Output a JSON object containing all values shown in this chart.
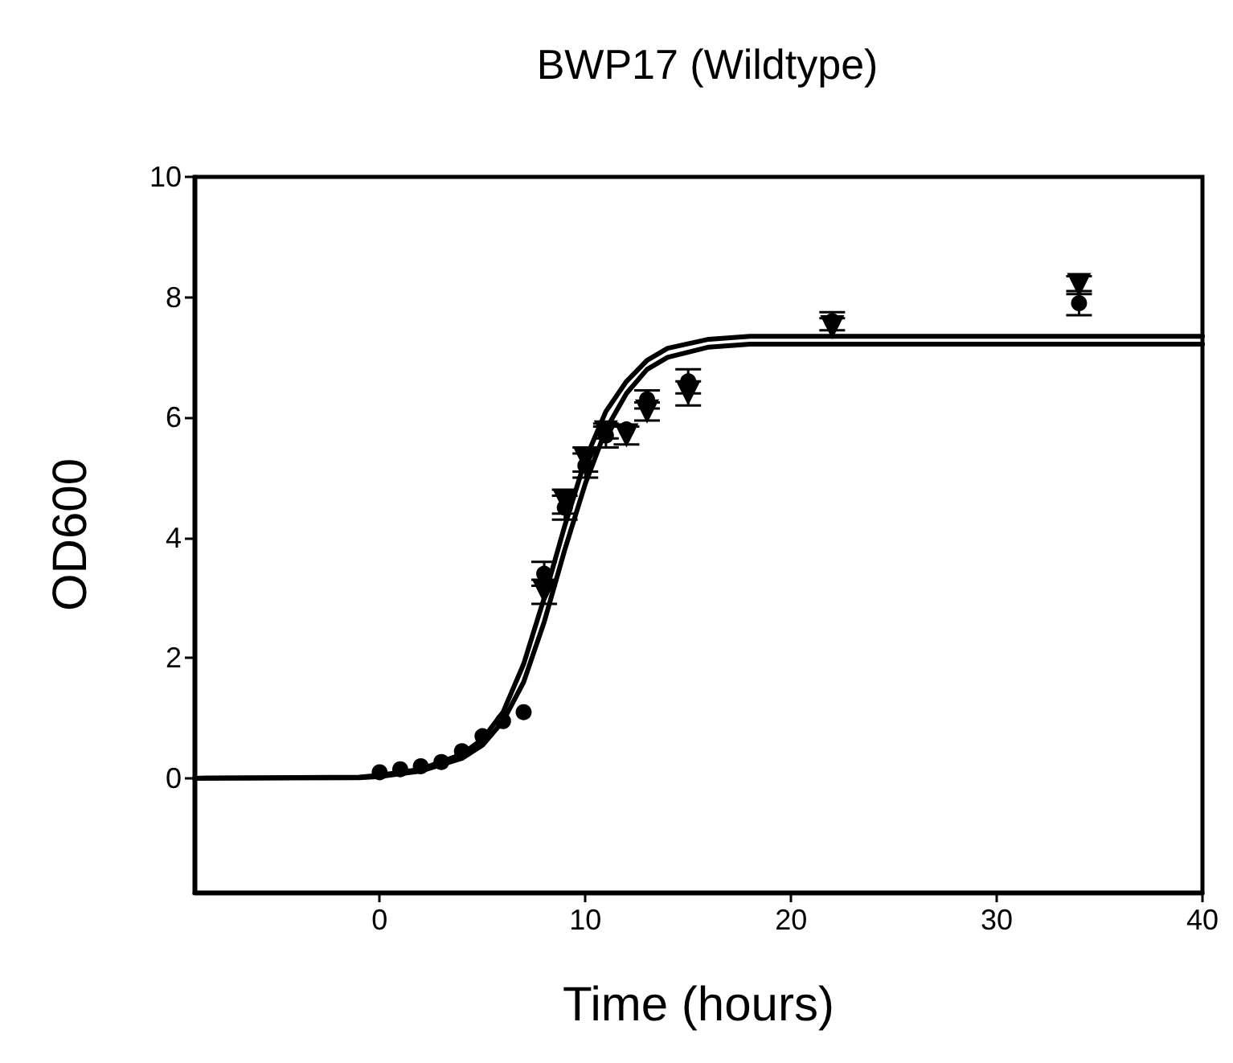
{
  "chart_data": {
    "type": "scatter",
    "title": "BWP17 (Wildtype)",
    "xlabel": "Time (hours)",
    "ylabel": "OD600",
    "xlim": [
      -9,
      40
    ],
    "xticks": [
      0,
      10,
      20,
      30,
      40
    ],
    "ylim": [
      -1.9,
      10
    ],
    "yticks": [
      0,
      2,
      4,
      6,
      8,
      10
    ],
    "grid": false,
    "series": [
      {
        "marker": "circle",
        "color": "#000000",
        "x": [
          0,
          1,
          2,
          3,
          4,
          5,
          6,
          7,
          8,
          9,
          10,
          11,
          12,
          13,
          15,
          22,
          34
        ],
        "values": [
          0.1,
          0.15,
          0.2,
          0.27,
          0.45,
          0.7,
          0.95,
          1.1,
          3.4,
          4.5,
          5.2,
          5.7,
          5.8,
          6.3,
          6.6,
          7.6,
          7.9
        ],
        "errors": [
          null,
          null,
          null,
          null,
          null,
          null,
          null,
          null,
          0.2,
          0.2,
          0.2,
          0.2,
          null,
          0.15,
          0.2,
          0.15,
          0.2
        ]
      },
      {
        "marker": "triangle",
        "color": "#000000",
        "x": [
          8,
          9,
          10,
          11,
          12,
          13,
          15,
          22,
          34
        ],
        "values": [
          3.1,
          4.6,
          5.3,
          5.75,
          5.7,
          6.1,
          6.4,
          7.5,
          8.2
        ],
        "errors": [
          0.2,
          0.2,
          0.2,
          0.1,
          0.15,
          0.15,
          0.2,
          0.15,
          0.15
        ]
      },
      {
        "type": "line",
        "marker": "none",
        "line_style": "solid",
        "color": "#000000",
        "x": [
          -9,
          -1,
          0,
          2,
          4,
          5,
          6,
          7,
          8,
          9,
          10,
          11,
          12,
          13,
          14,
          16,
          18,
          25,
          40
        ],
        "values": [
          0,
          0.02,
          0.05,
          0.15,
          0.4,
          0.65,
          1.1,
          1.9,
          3.0,
          4.2,
          5.3,
          6.1,
          6.6,
          6.95,
          7.15,
          7.3,
          7.35,
          7.35,
          7.35
        ]
      },
      {
        "type": "line",
        "marker": "none",
        "line_style": "solid",
        "color": "#000000",
        "x": [
          -9,
          -1,
          0,
          2,
          4,
          5,
          6,
          7,
          8,
          9,
          10,
          11,
          12,
          13,
          14,
          16,
          18,
          25,
          40
        ],
        "values": [
          0,
          0.01,
          0.03,
          0.12,
          0.33,
          0.55,
          0.95,
          1.6,
          2.6,
          3.8,
          4.9,
          5.8,
          6.4,
          6.8,
          7.0,
          7.17,
          7.22,
          7.22,
          7.22
        ]
      }
    ]
  }
}
